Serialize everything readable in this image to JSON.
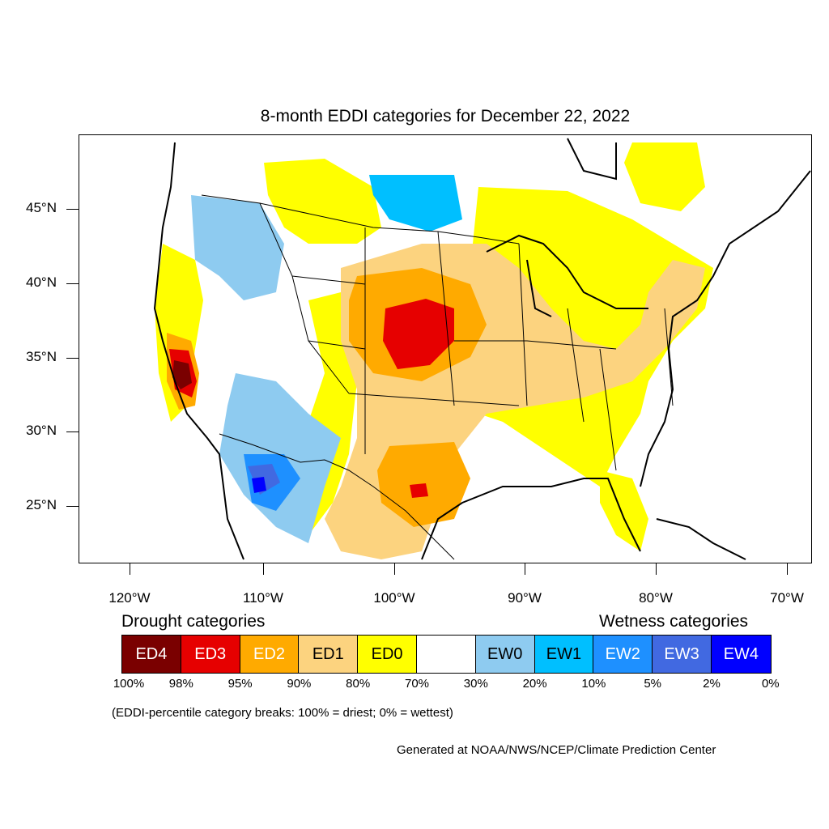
{
  "title": "8-month EDDI categories for December 22, 2022",
  "lat_labels": [
    "45°N",
    "40°N",
    "35°N",
    "30°N",
    "25°N"
  ],
  "lon_labels": [
    "120°W",
    "110°W",
    "100°W",
    "90°W",
    "80°W",
    "70°W"
  ],
  "legend": {
    "drought_heading": "Drought categories",
    "wetness_heading": "Wetness categories",
    "categories": [
      {
        "label": "ED4",
        "color": "#7a0000",
        "text_color": "#ffffff"
      },
      {
        "label": "ED3",
        "color": "#e60000",
        "text_color": "#ffffff"
      },
      {
        "label": "ED2",
        "color": "#ffaa00",
        "text_color": "#ffffff"
      },
      {
        "label": "ED1",
        "color": "#fcd37f",
        "text_color": "#000000"
      },
      {
        "label": "ED0",
        "color": "#ffff00",
        "text_color": "#000000"
      },
      {
        "label": "",
        "color": "#ffffff",
        "text_color": "#000000"
      },
      {
        "label": "EW0",
        "color": "#8ecbf0",
        "text_color": "#000000"
      },
      {
        "label": "EW1",
        "color": "#00bfff",
        "text_color": "#000000"
      },
      {
        "label": "EW2",
        "color": "#1e90ff",
        "text_color": "#ffffff"
      },
      {
        "label": "EW3",
        "color": "#4169e1",
        "text_color": "#ffffff"
      },
      {
        "label": "EW4",
        "color": "#0000ff",
        "text_color": "#ffffff"
      }
    ],
    "breaks": [
      "100%",
      "98%",
      "95%",
      "90%",
      "80%",
      "70%",
      "30%",
      "20%",
      "10%",
      "5%",
      "2%",
      "0%"
    ]
  },
  "note": "(EDDI-percentile category breaks: 100% = driest; 0% = wettest)",
  "credit": "Generated at NOAA/NWS/NCEP/Climate Prediction Center"
}
